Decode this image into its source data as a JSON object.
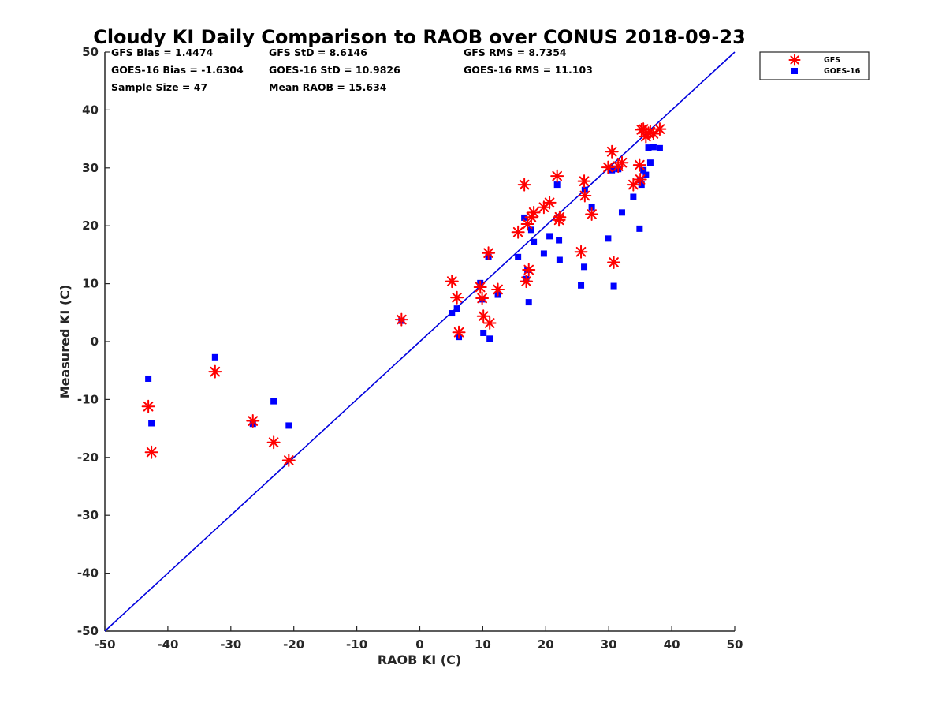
{
  "chart_data": {
    "type": "scatter",
    "title": "Cloudy KI Daily Comparison to RAOB over CONUS 2018-09-23",
    "xlabel": "RAOB KI (C)",
    "ylabel": "Measured KI (C)",
    "xlim": [
      -50,
      50
    ],
    "ylim": [
      -50,
      50
    ],
    "xticks": [
      "-50",
      "-40",
      "-30",
      "-20",
      "-10",
      "0",
      "10",
      "20",
      "30",
      "40",
      "50"
    ],
    "yticks": [
      "-50",
      "-40",
      "-30",
      "-20",
      "-10",
      "0",
      "10",
      "20",
      "30",
      "40",
      "50"
    ],
    "grid": false,
    "legend_position": "outside-top-right",
    "reference_line": "y = x",
    "stats": [
      "GFS Bias = 1.4474",
      "GFS StD = 8.6146",
      "GFS RMS = 8.7354",
      "GOES-16 Bias = -1.6304",
      "GOES-16 StD = 10.9826",
      "GOES-16 RMS = 11.103",
      "Sample Size = 47",
      "Mean RAOB = 15.634"
    ],
    "series": [
      {
        "name": "GFS",
        "marker": "asterisk",
        "color": "#ff0000",
        "points": [
          [
            -43.1,
            -11.2
          ],
          [
            -42.6,
            -19.1
          ],
          [
            -32.5,
            -5.2
          ],
          [
            -26.5,
            -13.7
          ],
          [
            -23.2,
            -17.4
          ],
          [
            -20.8,
            -20.5
          ],
          [
            -2.9,
            3.8
          ],
          [
            5.1,
            10.4
          ],
          [
            5.9,
            7.6
          ],
          [
            6.2,
            1.6
          ],
          [
            9.6,
            9.4
          ],
          [
            9.9,
            7.5
          ],
          [
            10.1,
            4.4
          ],
          [
            10.9,
            15.3
          ],
          [
            11.1,
            3.2
          ],
          [
            12.4,
            9.0
          ],
          [
            15.6,
            18.9
          ],
          [
            16.6,
            27.1
          ],
          [
            16.9,
            10.4
          ],
          [
            17.1,
            20.3
          ],
          [
            17.3,
            12.4
          ],
          [
            17.7,
            21.5
          ],
          [
            18.1,
            22.3
          ],
          [
            19.7,
            23.2
          ],
          [
            20.6,
            24.0
          ],
          [
            21.8,
            28.6
          ],
          [
            22.1,
            21.0
          ],
          [
            22.2,
            21.5
          ],
          [
            25.6,
            15.5
          ],
          [
            26.1,
            27.7
          ],
          [
            26.2,
            25.2
          ],
          [
            27.3,
            22.0
          ],
          [
            29.9,
            30.1
          ],
          [
            30.5,
            32.8
          ],
          [
            30.8,
            13.7
          ],
          [
            31.5,
            30.3
          ],
          [
            32.1,
            30.9
          ],
          [
            33.9,
            27.1
          ],
          [
            34.9,
            30.5
          ],
          [
            35.0,
            28.0
          ],
          [
            35.2,
            36.6
          ],
          [
            35.5,
            36.7
          ],
          [
            35.9,
            35.4
          ],
          [
            36.3,
            36.0
          ],
          [
            36.6,
            36.2
          ],
          [
            37.1,
            35.9
          ],
          [
            38.1,
            36.7
          ]
        ]
      },
      {
        "name": "GOES-16",
        "marker": "square",
        "color": "#0000ff",
        "points": [
          [
            -43.1,
            -6.4
          ],
          [
            -42.6,
            -14.1
          ],
          [
            -32.5,
            -2.7
          ],
          [
            -26.5,
            -14.2
          ],
          [
            -23.2,
            -10.3
          ],
          [
            -20.8,
            -14.5
          ],
          [
            -2.9,
            3.6
          ],
          [
            5.1,
            4.9
          ],
          [
            5.9,
            5.7
          ],
          [
            6.2,
            0.8
          ],
          [
            9.6,
            10.1
          ],
          [
            9.9,
            7.3
          ],
          [
            10.1,
            1.5
          ],
          [
            10.9,
            14.6
          ],
          [
            11.1,
            0.5
          ],
          [
            12.4,
            8.1
          ],
          [
            15.6,
            14.6
          ],
          [
            16.6,
            21.4
          ],
          [
            16.9,
            10.8
          ],
          [
            17.1,
            12.4
          ],
          [
            17.3,
            6.8
          ],
          [
            17.7,
            19.3
          ],
          [
            18.1,
            17.2
          ],
          [
            19.7,
            15.2
          ],
          [
            20.6,
            18.2
          ],
          [
            21.8,
            27.1
          ],
          [
            22.1,
            17.5
          ],
          [
            22.2,
            14.1
          ],
          [
            25.6,
            9.7
          ],
          [
            26.1,
            12.9
          ],
          [
            26.2,
            26.2
          ],
          [
            27.3,
            23.2
          ],
          [
            29.9,
            17.8
          ],
          [
            30.5,
            29.6
          ],
          [
            30.8,
            9.6
          ],
          [
            31.5,
            29.8
          ],
          [
            32.1,
            22.3
          ],
          [
            33.9,
            25.0
          ],
          [
            34.9,
            19.5
          ],
          [
            35.0,
            27.9
          ],
          [
            35.2,
            27.1
          ],
          [
            35.5,
            29.6
          ],
          [
            35.9,
            28.8
          ],
          [
            36.3,
            33.5
          ],
          [
            36.6,
            30.9
          ],
          [
            37.1,
            33.6
          ],
          [
            38.1,
            33.4
          ]
        ]
      }
    ]
  }
}
